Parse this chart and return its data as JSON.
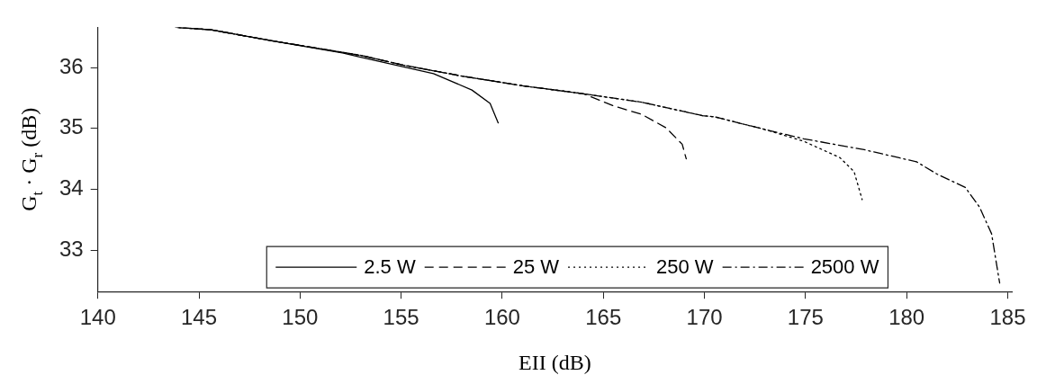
{
  "chart_data": {
    "type": "line",
    "xlabel": "EII (dB)",
    "ylabel": "G$_{t}$ · G$_{r}$ (dB)",
    "xlim": [
      140,
      185.2
    ],
    "xticks": [
      140,
      145,
      150,
      155,
      160,
      165,
      170,
      175,
      180,
      185
    ],
    "ylim": [
      32.32,
      36.66
    ],
    "yticks": [
      33,
      34,
      35,
      36
    ],
    "grid": false,
    "legend": "bottom",
    "marker": "none",
    "series": [
      {
        "name": "2.5 W",
        "color": "#000000",
        "line_style": "solid",
        "x": [
          143.85,
          145.6,
          148.6,
          152.1,
          153.0,
          156.6,
          158.5,
          159.4,
          159.8
        ],
        "values": [
          36.66,
          36.62,
          36.44,
          36.24,
          36.17,
          35.9,
          35.63,
          35.41,
          35.09
        ]
      },
      {
        "name": "25 W",
        "color": "#000000",
        "line_style": "dashed",
        "x": [
          143.85,
          145.6,
          148.6,
          153.0,
          155.1,
          158.0,
          161.0,
          164.0,
          165.5,
          166.9,
          168.1,
          168.9,
          169.1
        ],
        "values": [
          36.66,
          36.62,
          36.44,
          36.2,
          36.04,
          35.86,
          35.7,
          35.57,
          35.37,
          35.23,
          35.01,
          34.74,
          34.5
        ]
      },
      {
        "name": "250 W",
        "color": "#000000",
        "line_style": "dotted",
        "x": [
          143.85,
          145.6,
          148.6,
          153.0,
          155.1,
          158.0,
          161.0,
          164.0,
          166.9,
          169.9,
          170.5,
          172.9,
          174.9,
          176.7,
          177.4,
          177.8
        ],
        "values": [
          36.66,
          36.62,
          36.44,
          36.2,
          36.04,
          35.86,
          35.7,
          35.57,
          35.43,
          35.21,
          35.19,
          34.99,
          34.79,
          34.52,
          34.29,
          33.83
        ]
      },
      {
        "name": "2500 W",
        "color": "#000000",
        "line_style": "dashdot",
        "x": [
          143.85,
          145.6,
          148.6,
          153.0,
          155.1,
          158.0,
          161.0,
          164.0,
          166.9,
          169.9,
          170.5,
          172.9,
          174.9,
          177.9,
          180.5,
          181.5,
          182.9,
          183.6,
          184.2,
          184.6
        ],
        "values": [
          36.66,
          36.62,
          36.44,
          36.2,
          36.04,
          35.86,
          35.7,
          35.57,
          35.43,
          35.21,
          35.19,
          34.99,
          34.83,
          34.65,
          34.45,
          34.25,
          34.03,
          33.71,
          33.27,
          32.46
        ]
      }
    ]
  }
}
